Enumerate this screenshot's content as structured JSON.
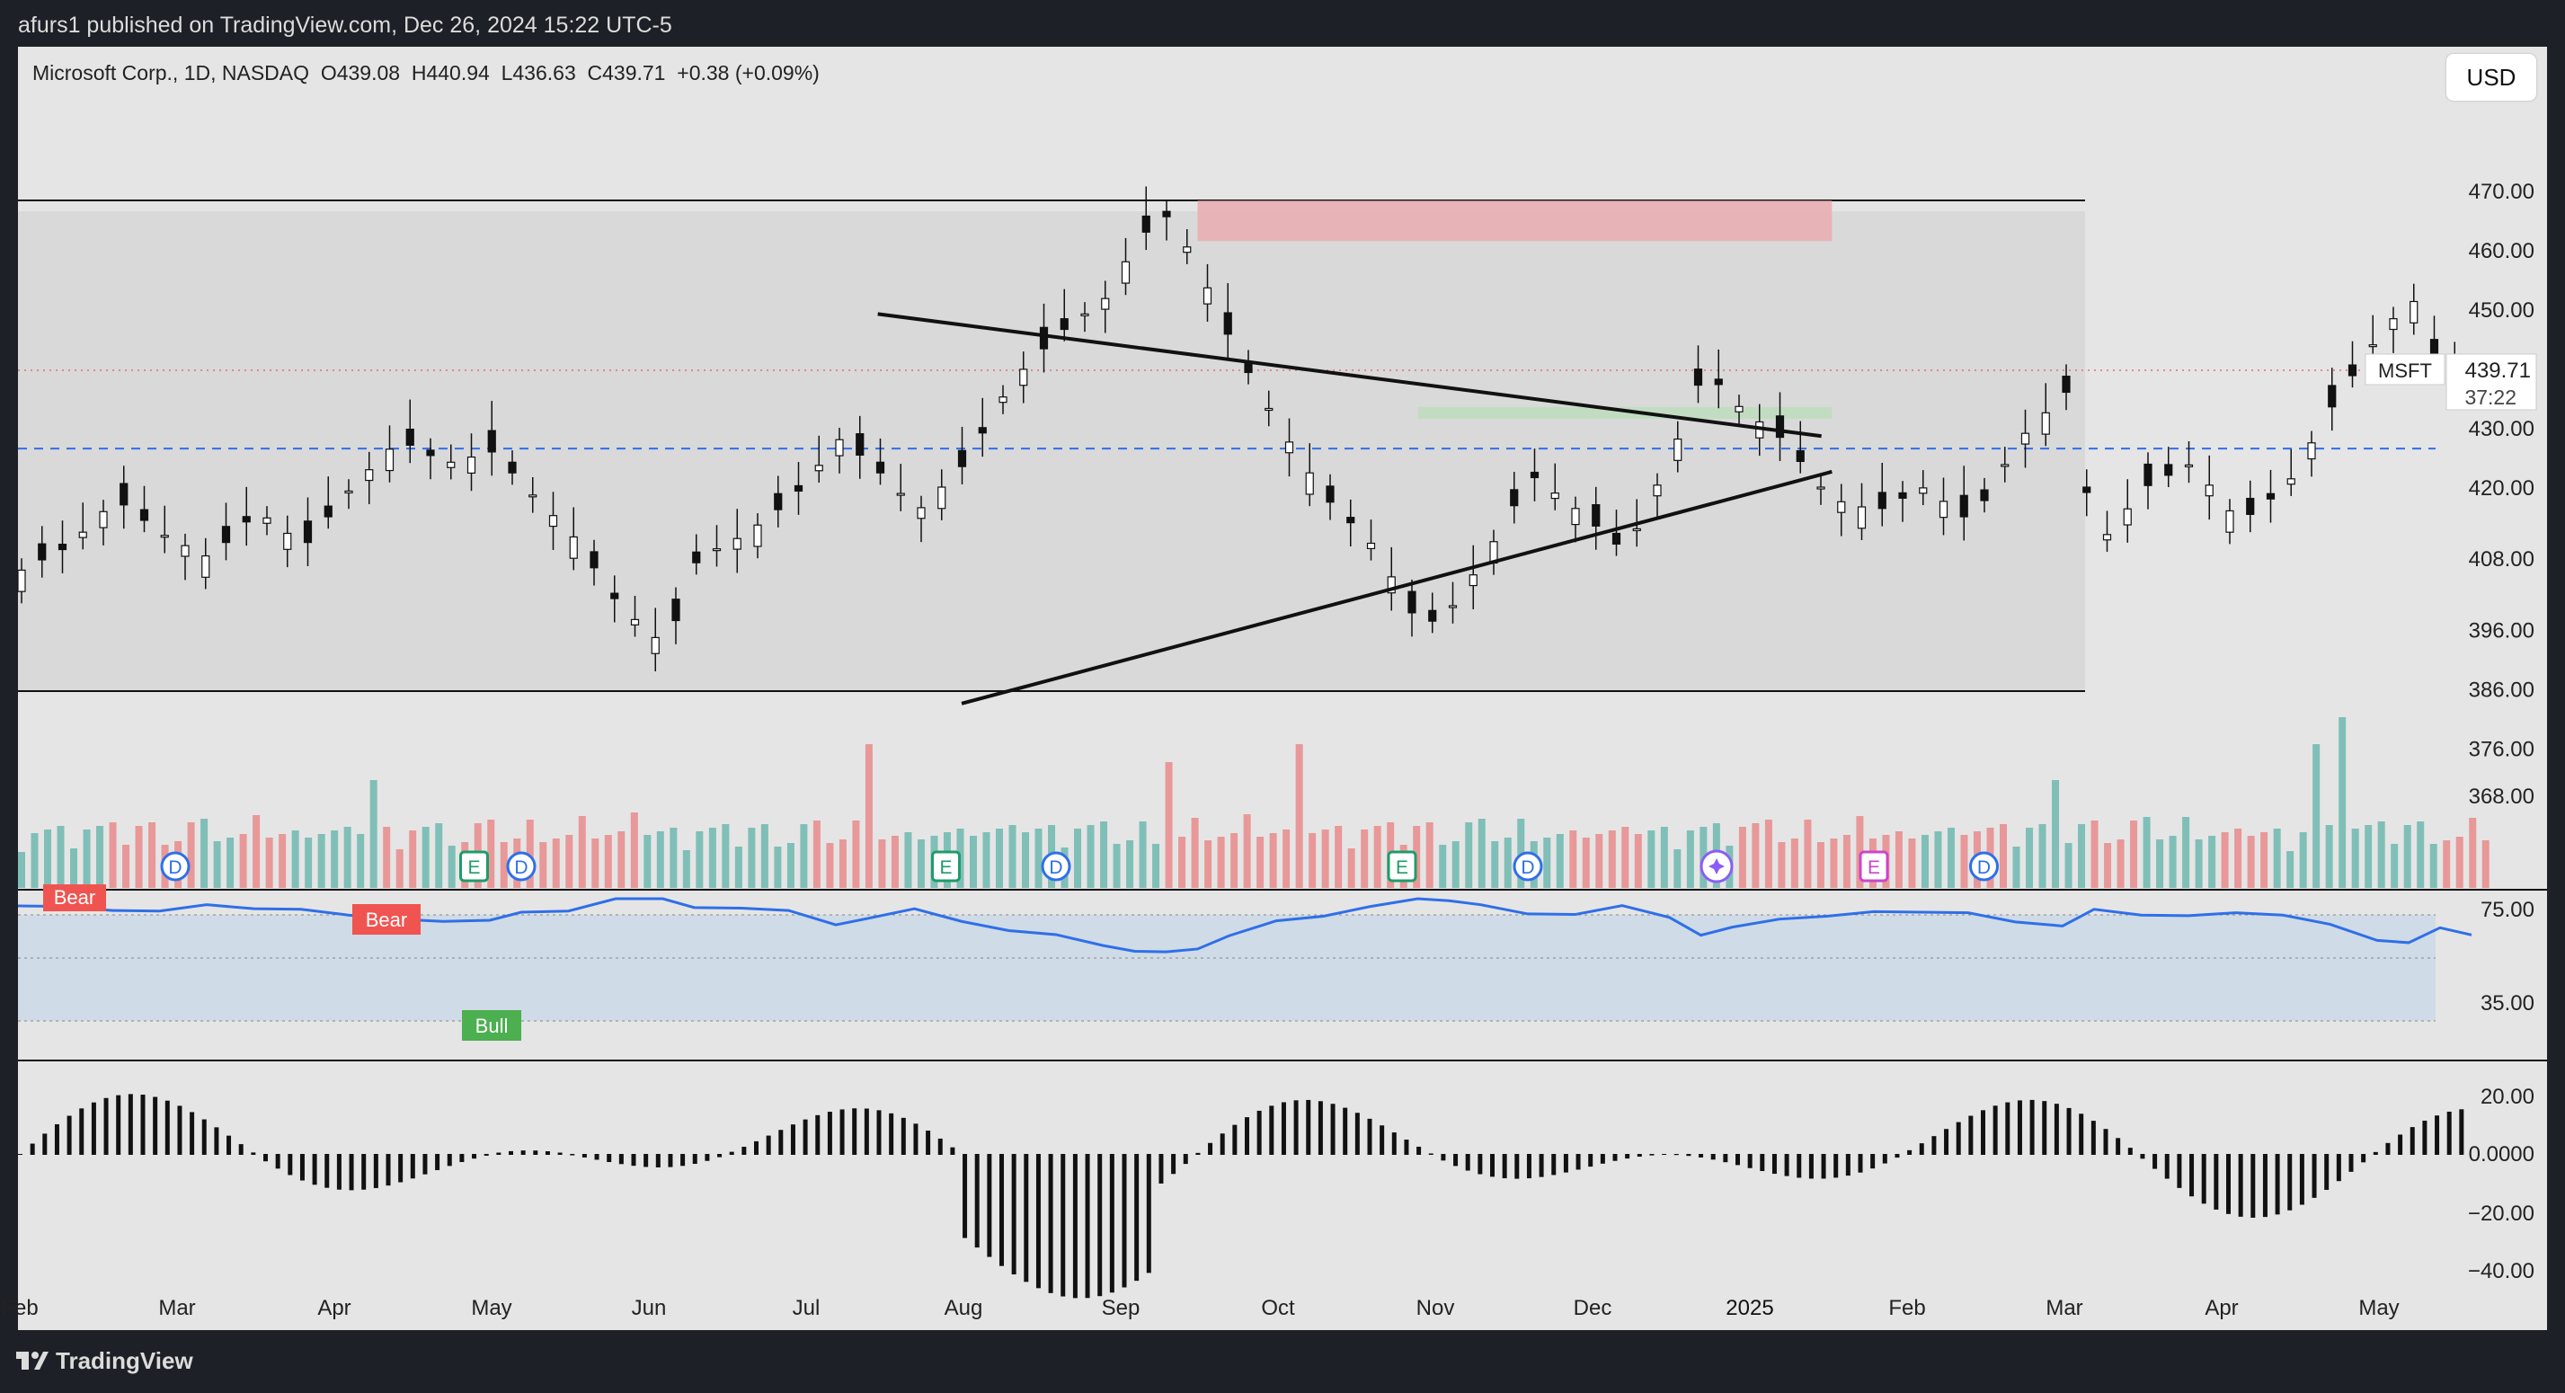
{
  "header": {
    "published_by": "afurs1 published on TradingView.com, Dec 26, 2024 15:22 UTC-5"
  },
  "legend": {
    "symbol": "Microsoft Corp., 1D, NASDAQ",
    "open": "O439.08",
    "high": "H440.94",
    "low": "L436.63",
    "close": "C439.71",
    "change": "+0.38 (+0.09%)"
  },
  "currency_button": "USD",
  "price_label": {
    "ticker": "MSFT",
    "price": "439.71",
    "countdown": "37:22"
  },
  "footer": {
    "brand": "TradingView"
  },
  "colors": {
    "up_volume": "#7fbfb7",
    "down_volume": "#e89898",
    "rsi_line": "#2f6fe8",
    "resistance_zone": "#e8aeb3",
    "support_zone": "#bfdcbf",
    "bear_label": "#f05450",
    "bull_label": "#4caf50",
    "dashed_line": "#2f6fe8"
  },
  "chart_data": {
    "type": "candlestick",
    "symbol": "MSFT",
    "interval": "1D",
    "price_axis_ticks": [
      "470.00",
      "460.00",
      "450.00",
      "430.00",
      "420.00",
      "408.00",
      "396.00",
      "386.00",
      "376.00",
      "368.00"
    ],
    "time_axis_labels": [
      "Feb",
      "Mar",
      "Apr",
      "May",
      "Jun",
      "Jul",
      "Aug",
      "Sep",
      "Oct",
      "Nov",
      "Dec",
      "2025",
      "Feb",
      "Mar",
      "Apr",
      "May"
    ],
    "time_axis_label_months": [
      0,
      1,
      2,
      3,
      4,
      5,
      6,
      7,
      8,
      9,
      10,
      11,
      12,
      13,
      14,
      15
    ],
    "price_range_lines": [
      468.35,
      385.6
    ],
    "dashed_level": 426.5,
    "resistance_zone": {
      "top": 468.3,
      "bottom": 461.5,
      "from": "Sep 16",
      "to": "Jan 17"
    },
    "support_zone": {
      "top": 433.5,
      "bottom": 431.5,
      "from": "Oct 28",
      "to": "Jan 17"
    },
    "trendlines": [
      {
        "from": [
          "Jul 15",
          449.2
        ],
        "to": [
          "Jan 15",
          428.6
        ]
      },
      {
        "from": [
          "Aug 01",
          383.5
        ],
        "to": [
          "Jan 17",
          422.6
        ]
      }
    ],
    "events": [
      {
        "type": "D",
        "month": 1.0
      },
      {
        "type": "E",
        "month": 2.9
      },
      {
        "type": "D",
        "month": 3.2
      },
      {
        "type": "E",
        "month": 5.9
      },
      {
        "type": "D",
        "month": 6.6
      },
      {
        "type": "E",
        "month": 8.8
      },
      {
        "type": "D",
        "month": 9.6
      },
      {
        "type": "star",
        "month": 10.8
      },
      {
        "type": "E",
        "month": 11.8
      },
      {
        "type": "D",
        "month": 12.5
      }
    ],
    "event_labels": {
      "D": "D",
      "E": "E"
    },
    "close_series": [
      [
        0.0,
        406
      ],
      [
        0.3,
        410
      ],
      [
        0.6,
        418
      ],
      [
        0.9,
        412
      ],
      [
        1.2,
        408
      ],
      [
        1.5,
        416
      ],
      [
        1.8,
        410
      ],
      [
        2.1,
        420
      ],
      [
        2.4,
        428
      ],
      [
        2.7,
        424
      ],
      [
        3.0,
        426
      ],
      [
        3.2,
        420
      ],
      [
        3.5,
        412
      ],
      [
        3.8,
        400
      ],
      [
        4.1,
        393
      ],
      [
        4.3,
        408
      ],
      [
        4.6,
        412
      ],
      [
        4.9,
        418
      ],
      [
        5.2,
        428
      ],
      [
        5.4,
        424
      ],
      [
        5.7,
        416
      ],
      [
        6.0,
        424
      ],
      [
        6.3,
        438
      ],
      [
        6.6,
        446
      ],
      [
        6.9,
        452
      ],
      [
        7.1,
        462
      ],
      [
        7.3,
        466
      ],
      [
        7.5,
        456
      ],
      [
        7.7,
        444
      ],
      [
        8.0,
        430
      ],
      [
        8.3,
        418
      ],
      [
        8.6,
        410
      ],
      [
        8.9,
        396
      ],
      [
        9.1,
        400
      ],
      [
        9.3,
        408
      ],
      [
        9.6,
        422
      ],
      [
        9.9,
        416
      ],
      [
        10.2,
        409
      ],
      [
        10.5,
        426
      ],
      [
        10.7,
        440
      ],
      [
        10.9,
        434
      ],
      [
        11.2,
        428
      ],
      [
        11.5,
        418
      ],
      [
        11.8,
        416
      ],
      [
        12.1,
        420
      ],
      [
        12.4,
        414
      ],
      [
        12.7,
        428
      ],
      [
        13.0,
        436
      ],
      [
        13.2,
        410
      ],
      [
        13.5,
        420
      ],
      [
        13.8,
        424
      ],
      [
        14.1,
        414
      ],
      [
        14.4,
        420
      ],
      [
        14.7,
        434
      ],
      [
        15.0,
        446
      ],
      [
        15.2,
        452
      ],
      [
        15.4,
        438
      ],
      [
        15.6,
        439.71
      ]
    ],
    "volume_note": "colored histogram under price",
    "rsi": {
      "ticks": [
        "75.00",
        "35.00"
      ],
      "labels": [
        {
          "text": "Bear",
          "kind": "bear"
        },
        {
          "text": "Bear",
          "kind": "bear"
        },
        {
          "text": "Bull",
          "kind": "bull"
        }
      ]
    },
    "macd_histogram": {
      "ticks": [
        "20.00",
        "0.0000",
        "−20.00",
        "−40.00"
      ]
    }
  }
}
